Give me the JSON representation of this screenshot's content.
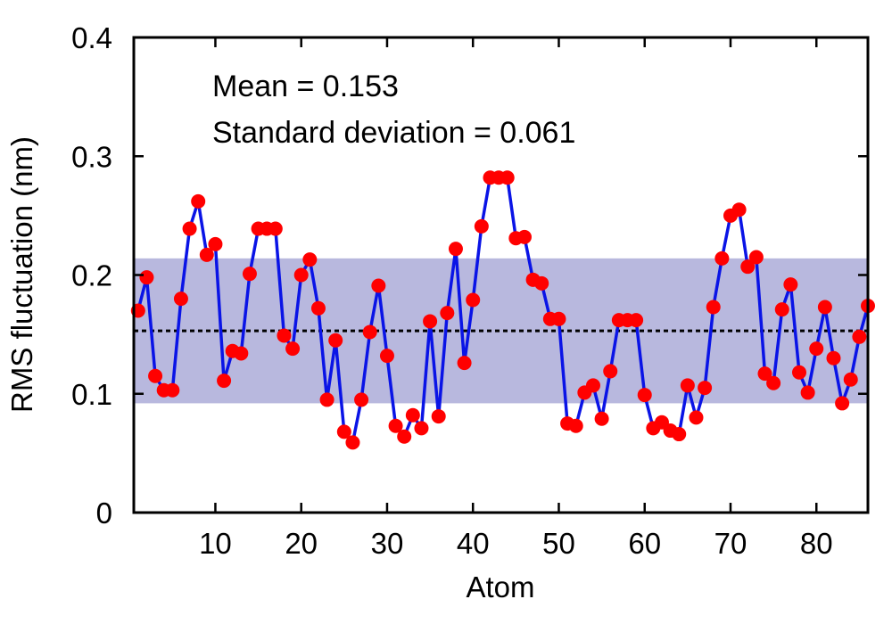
{
  "chart_data": {
    "type": "line",
    "xlabel": "Atom",
    "ylabel": "RMS fluctuation (nm)",
    "xlim": [
      0.5,
      86
    ],
    "ylim": [
      0,
      0.4
    ],
    "xticks": [
      10,
      20,
      30,
      40,
      50,
      60,
      70,
      80
    ],
    "xtick_labels": [
      "10",
      "20",
      "30",
      "40",
      "50",
      "60",
      "70",
      "80"
    ],
    "yticks": [
      0,
      0.1,
      0.2,
      0.3,
      0.4
    ],
    "ytick_labels": [
      "0",
      "0.1",
      "0.2",
      "0.3",
      "0.4"
    ],
    "grid": false,
    "annotations": [
      "Mean = 0.153",
      "Standard deviation = 0.061"
    ],
    "mean": 0.153,
    "std_band": [
      0.092,
      0.214
    ],
    "colors": {
      "line": "#0a14e6",
      "points": "#ff0000",
      "band": "#b8b8de",
      "mean_line": "#000000"
    },
    "x": [
      1,
      2,
      3,
      4,
      5,
      6,
      7,
      8,
      9,
      10,
      11,
      12,
      13,
      14,
      15,
      16,
      17,
      18,
      19,
      20,
      21,
      22,
      23,
      24,
      25,
      26,
      27,
      28,
      29,
      30,
      31,
      32,
      33,
      34,
      35,
      36,
      37,
      38,
      39,
      40,
      41,
      42,
      43,
      44,
      45,
      46,
      47,
      48,
      49,
      50,
      51,
      52,
      53,
      54,
      55,
      56,
      57,
      58,
      59,
      60,
      61,
      62,
      63,
      64,
      65,
      66,
      67,
      68,
      69,
      70,
      71,
      72,
      73,
      74,
      75,
      76,
      77,
      78,
      79,
      80,
      81,
      82,
      83,
      84,
      85,
      86
    ],
    "values": [
      0.17,
      0.198,
      0.115,
      0.103,
      0.103,
      0.18,
      0.239,
      0.262,
      0.217,
      0.226,
      0.111,
      0.136,
      0.134,
      0.201,
      0.239,
      0.239,
      0.239,
      0.149,
      0.138,
      0.2,
      0.213,
      0.172,
      0.095,
      0.145,
      0.068,
      0.059,
      0.095,
      0.152,
      0.191,
      0.132,
      0.073,
      0.064,
      0.082,
      0.071,
      0.161,
      0.081,
      0.168,
      0.222,
      0.126,
      0.179,
      0.241,
      0.282,
      0.282,
      0.282,
      0.231,
      0.232,
      0.196,
      0.193,
      0.163,
      0.163,
      0.075,
      0.073,
      0.101,
      0.107,
      0.079,
      0.119,
      0.162,
      0.162,
      0.162,
      0.099,
      0.071,
      0.076,
      0.069,
      0.066,
      0.107,
      0.08,
      0.105,
      0.173,
      0.214,
      0.25,
      0.255,
      0.207,
      0.215,
      0.117,
      0.109,
      0.171,
      0.192,
      0.118,
      0.101,
      0.138,
      0.173,
      0.13,
      0.092,
      0.112,
      0.148,
      0.174
    ]
  }
}
